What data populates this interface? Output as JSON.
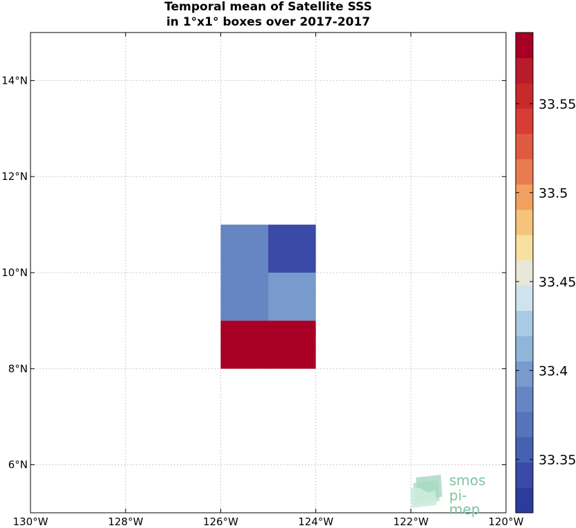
{
  "title": [
    "Temporal mean of Satellite SSS",
    "in 1°x1° boxes over 2017-2017"
  ],
  "logo": {
    "line1": "smos",
    "line2": "pi-mep"
  },
  "chart_data": {
    "type": "heatmap",
    "title": "Temporal mean of Satellite SSS in 1°x1° boxes over 2017-2017",
    "xlabel": "",
    "ylabel": "",
    "xlim": [
      -130,
      -120
    ],
    "ylim": [
      5,
      15
    ],
    "x_ticks": [
      -130,
      -128,
      -126,
      -124,
      -122,
      -120
    ],
    "x_tick_labels": [
      "130°W",
      "128°W",
      "126°W",
      "124°W",
      "122°W",
      "120°W"
    ],
    "y_ticks": [
      6,
      8,
      10,
      12,
      14
    ],
    "y_tick_labels": [
      "6°N",
      "8°N",
      "10°N",
      "12°N",
      "14°N"
    ],
    "grid": true,
    "cells": [
      {
        "lon": [
          -126,
          -125
        ],
        "lat": [
          10,
          11
        ],
        "value": 33.385
      },
      {
        "lon": [
          -125,
          -124
        ],
        "lat": [
          10,
          11
        ],
        "value": 33.335
      },
      {
        "lon": [
          -126,
          -125
        ],
        "lat": [
          9,
          10
        ],
        "value": 33.385
      },
      {
        "lon": [
          -125,
          -124
        ],
        "lat": [
          9,
          10
        ],
        "value": 33.395
      },
      {
        "lon": [
          -126,
          -125
        ],
        "lat": [
          8,
          9
        ],
        "value": 33.585
      },
      {
        "lon": [
          -125,
          -124
        ],
        "lat": [
          8,
          9
        ],
        "value": 33.585
      }
    ],
    "colorbar": {
      "range": [
        33.32,
        33.59
      ],
      "ticks": [
        33.35,
        33.4,
        33.45,
        33.5,
        33.55
      ],
      "tick_labels": [
        "33.35",
        "33.4",
        "33.45",
        "33.5",
        "33.55"
      ],
      "colors": [
        "#2c3c9c",
        "#3a4aa6",
        "#4561b0",
        "#5574ba",
        "#6685c3",
        "#789acc",
        "#8fb5d9",
        "#a8cae3",
        "#cde4ec",
        "#e8e8d8",
        "#f7e0a0",
        "#f5c37b",
        "#f1a060",
        "#e87c50",
        "#e05a42",
        "#d83d35",
        "#c82a2c",
        "#b81b2a",
        "#a80024"
      ]
    }
  }
}
